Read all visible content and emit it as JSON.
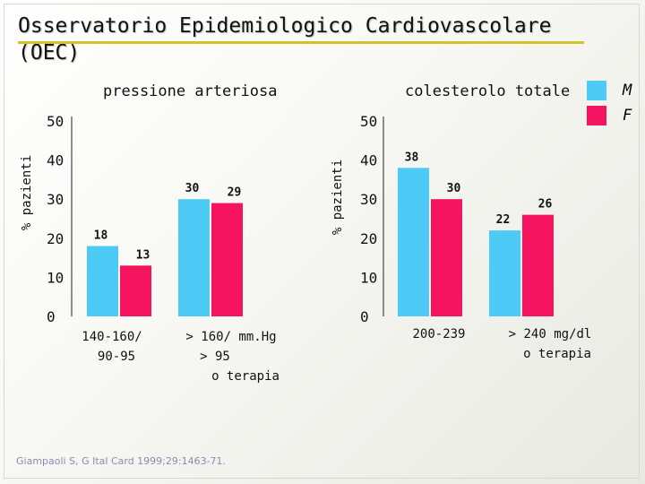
{
  "slide": {
    "title": "Osservatorio Epidemiologico Cardiovascolare (OEC)",
    "citation": "Giampaoli S, G Ital Card 1999;29:1463-71."
  },
  "legend": [
    {
      "label": "M",
      "color": "#4dcaf5"
    },
    {
      "label": "F",
      "color": "#f5145f"
    }
  ],
  "chart_data": [
    {
      "type": "bar",
      "title": "pressione arteriosa",
      "ylabel": "% pazienti",
      "xlabel": "",
      "ylim": [
        0,
        50
      ],
      "yticks": [
        "0",
        "10",
        "20",
        "30",
        "40",
        "50"
      ],
      "categories": [
        {
          "lines": [
            "140-160/",
            "90-95"
          ]
        },
        {
          "lines": [
            "> 160/  mm.Hg",
            "> 95",
            "o terapia"
          ]
        }
      ],
      "series": [
        {
          "name": "M",
          "values": [
            18,
            30
          ],
          "labels": [
            "18",
            "30"
          ]
        },
        {
          "name": "F",
          "values": [
            13,
            29
          ],
          "labels": [
            "13",
            "29"
          ]
        }
      ]
    },
    {
      "type": "bar",
      "title": "colesterolo totale",
      "ylabel": "% pazienti",
      "xlabel": "",
      "ylim": [
        0,
        50
      ],
      "yticks": [
        "0",
        "10",
        "20",
        "30",
        "40",
        "50"
      ],
      "categories": [
        {
          "lines": [
            "200-239"
          ]
        },
        {
          "lines": [
            "> 240 mg/dl",
            "o terapia"
          ]
        }
      ],
      "series": [
        {
          "name": "M",
          "values": [
            38,
            22
          ],
          "labels": [
            "38",
            "22"
          ]
        },
        {
          "name": "F",
          "values": [
            30,
            26
          ],
          "labels": [
            "30",
            "26"
          ]
        }
      ]
    }
  ]
}
